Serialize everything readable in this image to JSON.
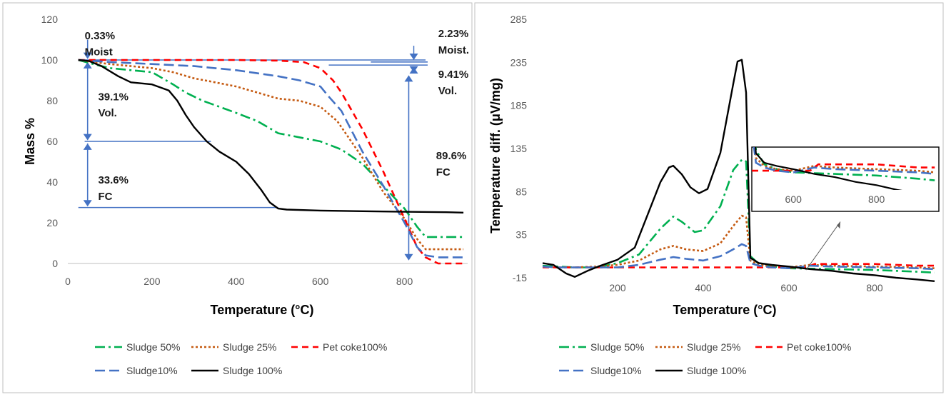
{
  "chart_data": [
    {
      "type": "line",
      "title": "",
      "xlabel": "Temperature (°C)",
      "ylabel": "Mass %",
      "xlim": [
        0,
        950
      ],
      "ylim": [
        0,
        120
      ],
      "xticks": [
        0,
        200,
        400,
        600,
        800
      ],
      "yticks": [
        0,
        20,
        40,
        60,
        80,
        100,
        120
      ],
      "annotations": [
        {
          "id": "moist1",
          "text": "0.33%",
          "x": 40,
          "y": 112
        },
        {
          "id": "moist2",
          "text": "Moist",
          "x": 40,
          "y": 104
        },
        {
          "id": "vol1",
          "text": "39.1%",
          "x": 72,
          "y": 82
        },
        {
          "id": "vol2",
          "text": "Vol.",
          "x": 72,
          "y": 74
        },
        {
          "id": "fc1",
          "text": "33.6%",
          "x": 72,
          "y": 41
        },
        {
          "id": "fc2",
          "text": "FC",
          "x": 72,
          "y": 33
        },
        {
          "id": "moistR1",
          "text": "2.23%",
          "x": 880,
          "y": 113
        },
        {
          "id": "moistR2",
          "text": "Moist.",
          "x": 880,
          "y": 105
        },
        {
          "id": "volR1",
          "text": "9.41%",
          "x": 880,
          "y": 93
        },
        {
          "id": "volR2",
          "text": "Vol.",
          "x": 880,
          "y": 85
        },
        {
          "id": "fcR1",
          "text": "89.6%",
          "x": 875,
          "y": 53
        },
        {
          "id": "fcR2",
          "text": "FC",
          "x": 875,
          "y": 45
        }
      ],
      "series": [
        {
          "name": "Sludge 50%",
          "color": "#00B050",
          "dash": "14,5,3,5",
          "x": [
            25,
            60,
            100,
            150,
            200,
            250,
            280,
            320,
            360,
            400,
            450,
            500,
            550,
            600,
            650,
            700,
            750,
            800,
            830,
            850,
            900,
            940
          ],
          "y": [
            100,
            98,
            96,
            95,
            94,
            88,
            84,
            80,
            77,
            74,
            70,
            64,
            62,
            60,
            56,
            49,
            38,
            27,
            18,
            13,
            13,
            13
          ]
        },
        {
          "name": "Sludge 25%",
          "color": "#C55A11",
          "dash": "3,3",
          "x": [
            25,
            60,
            100,
            150,
            200,
            250,
            300,
            350,
            400,
            450,
            500,
            550,
            600,
            640,
            700,
            750,
            800,
            830,
            850,
            900,
            940
          ],
          "y": [
            100,
            99,
            98,
            97,
            96,
            94,
            91,
            89,
            87,
            84,
            81,
            80,
            77,
            70,
            52,
            35,
            22,
            12,
            7,
            7,
            7
          ]
        },
        {
          "name": "Pet coke100%",
          "color": "#FF0000",
          "dash": "9,6",
          "x": [
            25,
            100,
            200,
            300,
            400,
            500,
            560,
            600,
            630,
            650,
            700,
            750,
            800,
            830,
            850,
            880,
            940
          ],
          "y": [
            100,
            100,
            100,
            100,
            100,
            99.7,
            99,
            96,
            90,
            84,
            66,
            45,
            22,
            8,
            3,
            0,
            0
          ]
        },
        {
          "name": "Sludge10%",
          "color": "#4472C4",
          "dash": "14,6",
          "x": [
            25,
            100,
            200,
            300,
            400,
            500,
            550,
            600,
            620,
            650,
            700,
            750,
            800,
            830,
            850,
            880,
            940
          ],
          "y": [
            100,
            99,
            98,
            97,
            95,
            92,
            90,
            87,
            82,
            75,
            55,
            38,
            20,
            8,
            4,
            3,
            3
          ]
        },
        {
          "name": "Sludge 100%",
          "color": "#000000",
          "dash": "",
          "x": [
            25,
            50,
            80,
            120,
            150,
            200,
            240,
            260,
            280,
            300,
            330,
            360,
            400,
            430,
            460,
            480,
            500,
            520,
            600,
            700,
            800,
            900,
            940
          ],
          "y": [
            100,
            99.5,
            97,
            92,
            89,
            88,
            85,
            80,
            73,
            67,
            60,
            55,
            50,
            44,
            36,
            30,
            27,
            26.5,
            26,
            25.7,
            25.4,
            25.2,
            25
          ]
        }
      ],
      "legend_position": "bottom"
    },
    {
      "type": "line",
      "title": "",
      "xlabel": "Temperature (°C)",
      "ylabel": "Temperature diff. (μV/mg)",
      "xlim": [
        0,
        950
      ],
      "ylim": [
        -15,
        285
      ],
      "xticks": [
        200,
        400,
        600,
        800
      ],
      "yticks": [
        -15,
        35,
        85,
        135,
        185,
        235,
        285
      ],
      "inset": {
        "xlim": [
          500,
          950
        ],
        "ylim": [
          -15,
          10
        ],
        "xticks": [
          600,
          800
        ],
        "source_region": "x 480–950, y -20–10"
      },
      "series": [
        {
          "name": "Sludge 50%",
          "color": "#00B050",
          "dash": "14,5,3,5",
          "x": [
            25,
            60,
            100,
            150,
            200,
            250,
            300,
            330,
            350,
            380,
            400,
            440,
            470,
            490,
            500,
            510,
            530,
            560,
            600,
            700,
            800,
            850,
            900,
            940
          ],
          "y": [
            -1,
            -2,
            -3,
            -3,
            2,
            12,
            42,
            56,
            50,
            38,
            40,
            68,
            110,
            122,
            120,
            10,
            1,
            -2,
            -4,
            -5,
            -6,
            -7,
            -8,
            -9
          ]
        },
        {
          "name": "Sludge 25%",
          "color": "#C55A11",
          "dash": "3,3",
          "x": [
            25,
            60,
            100,
            150,
            200,
            250,
            300,
            330,
            360,
            400,
            440,
            470,
            490,
            500,
            510,
            530,
            560,
            600,
            650,
            700,
            800,
            900,
            940
          ],
          "y": [
            -2,
            -3,
            -3,
            -2,
            0,
            5,
            18,
            22,
            18,
            16,
            25,
            45,
            57,
            55,
            5,
            0,
            -2,
            -3,
            0,
            -1,
            -2,
            -3,
            -4
          ]
        },
        {
          "name": "Pet coke100%",
          "color": "#FF0000",
          "dash": "9,6",
          "x": [
            25,
            100,
            200,
            300,
            400,
            500,
            550,
            600,
            640,
            660,
            700,
            750,
            800,
            850,
            900,
            940
          ],
          "y": [
            -3,
            -3,
            -3,
            -3,
            -3,
            -3,
            -3,
            -3,
            -3,
            1,
            1,
            1,
            1,
            0,
            -1,
            -1
          ]
        },
        {
          "name": "Sludge10%",
          "color": "#4472C4",
          "dash": "14,6",
          "x": [
            25,
            60,
            100,
            150,
            200,
            250,
            300,
            330,
            360,
            400,
            440,
            470,
            490,
            500,
            510,
            530,
            560,
            600,
            650,
            700,
            800,
            900,
            940
          ],
          "y": [
            -2,
            -3,
            -3,
            -3,
            -3,
            0,
            6,
            9,
            7,
            5,
            10,
            18,
            24,
            22,
            2,
            -1,
            -3,
            -4,
            -1,
            -2,
            -3,
            -4,
            -5
          ]
        },
        {
          "name": "Sludge 100%",
          "color": "#000000",
          "dash": "",
          "x": [
            25,
            50,
            80,
            100,
            130,
            160,
            200,
            240,
            270,
            300,
            320,
            330,
            350,
            370,
            390,
            410,
            440,
            470,
            480,
            490,
            500,
            510,
            530,
            560,
            600,
            650,
            700,
            750,
            800,
            850,
            900,
            940
          ],
          "y": [
            2,
            0,
            -10,
            -14,
            -7,
            -1,
            6,
            20,
            58,
            96,
            113,
            115,
            105,
            90,
            83,
            88,
            130,
            210,
            236,
            238,
            200,
            8,
            2,
            0,
            -2,
            -5,
            -7,
            -10,
            -12,
            -15,
            -17,
            -19
          ]
        }
      ],
      "legend_position": "bottom"
    }
  ]
}
